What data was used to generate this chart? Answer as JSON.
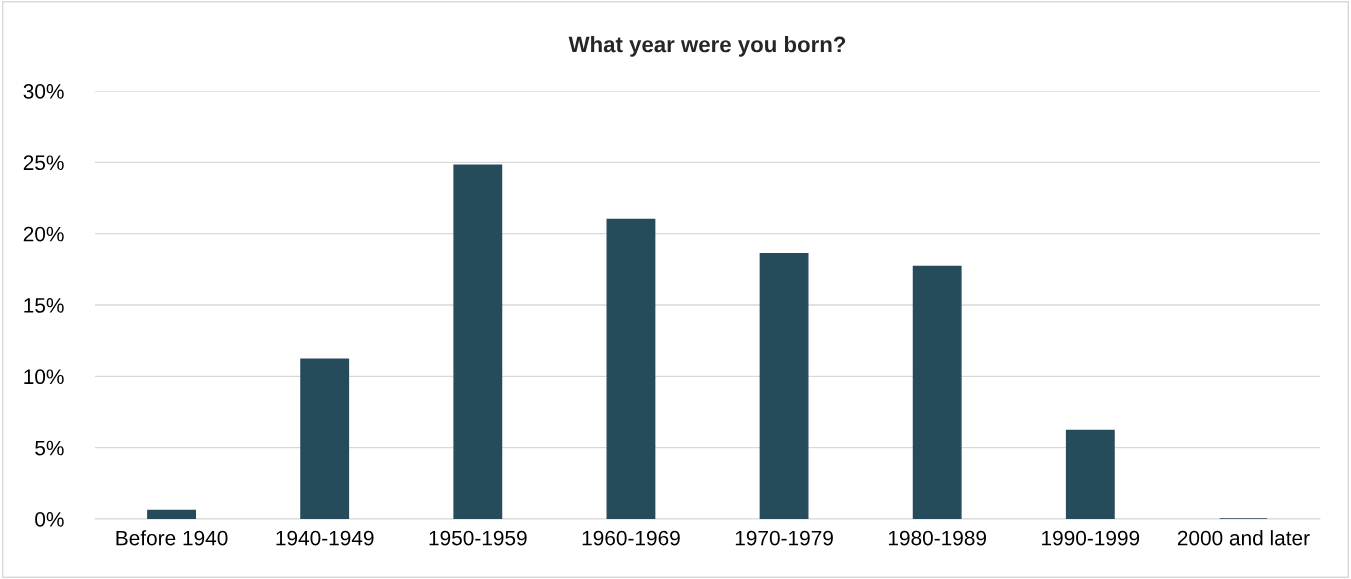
{
  "chart_data": {
    "type": "bar",
    "title": "What year were you born?",
    "categories": [
      "Before 1940",
      "1940-1949",
      "1950-1959",
      "1960-1969",
      "1970-1979",
      "1980-1989",
      "1990-1999",
      "2000 and later"
    ],
    "values": [
      0.6,
      11.2,
      24.8,
      21.0,
      18.6,
      17.7,
      6.2,
      0
    ],
    "color": "#264b5a",
    "ylim": [
      0,
      30
    ],
    "yticks": [
      {
        "value": 0,
        "label": "0%"
      },
      {
        "value": 5,
        "label": "5%"
      },
      {
        "value": 10,
        "label": "10%"
      },
      {
        "value": 15,
        "label": "15%"
      },
      {
        "value": 20,
        "label": "20%"
      },
      {
        "value": 25,
        "label": "25%"
      },
      {
        "value": 30,
        "label": "30%"
      }
    ],
    "grid": "y"
  }
}
